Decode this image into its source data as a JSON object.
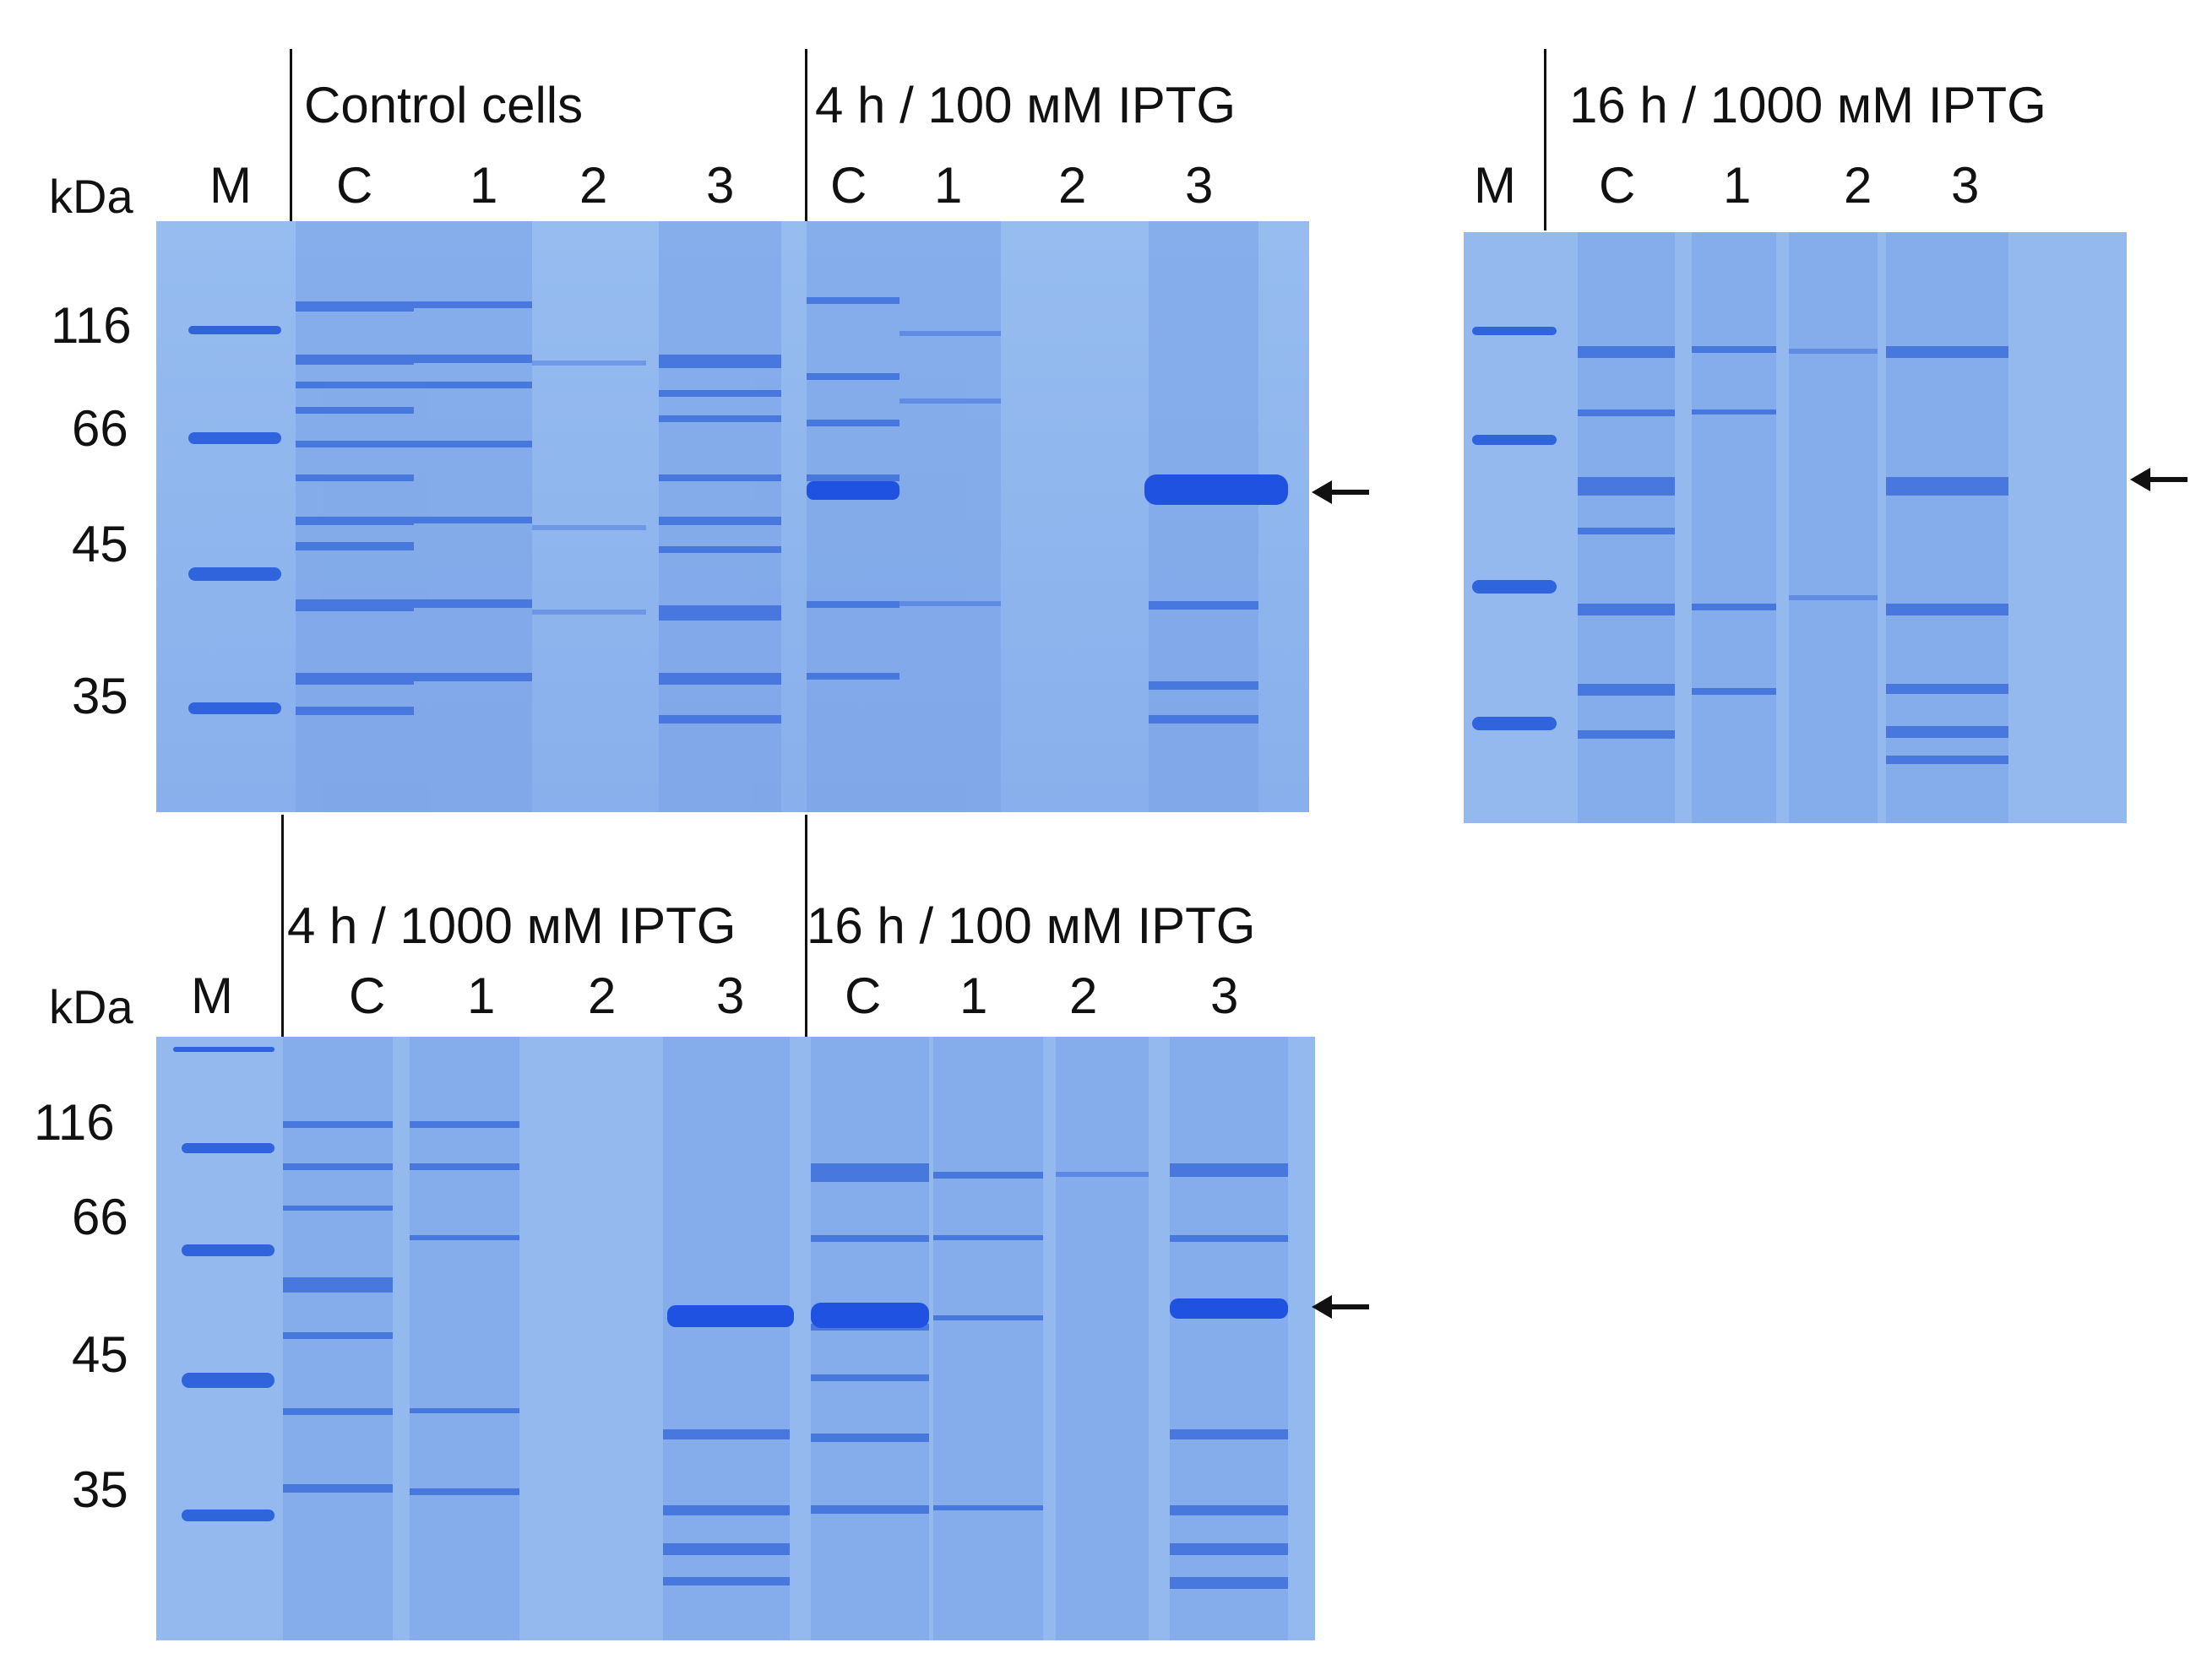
{
  "colors": {
    "gel_background": "#8fb6ee",
    "band": "#2f5fd8",
    "strong_band": "#1f4fe0",
    "text": "#111111"
  },
  "units_label": "kDa",
  "marker_lane_label": "M",
  "panels": [
    {
      "id": "panel-a",
      "marker_weights": [
        "116",
        "66",
        "45",
        "35"
      ],
      "groups": [
        {
          "condition": "Control cells",
          "lanes": [
            "C",
            "1",
            "2",
            "3"
          ]
        },
        {
          "condition": "4 h / 100 мМ IPTG",
          "lanes": [
            "C",
            "1",
            "2",
            "3"
          ]
        }
      ],
      "arrow": "target-band-indicator"
    },
    {
      "id": "panel-b",
      "marker_weights": [],
      "groups": [
        {
          "condition": "16 h / 1000 мМ IPTG",
          "lanes": [
            "C",
            "1",
            "2",
            "3"
          ]
        }
      ],
      "arrow": "target-band-indicator"
    },
    {
      "id": "panel-c",
      "marker_weights": [
        "116",
        "66",
        "45",
        "35"
      ],
      "groups": [
        {
          "condition": "4 h / 1000 мМ IPTG",
          "lanes": [
            "C",
            "1",
            "2",
            "3"
          ]
        },
        {
          "condition": "16 h / 100 мМ IPTG",
          "lanes": [
            "C",
            "1",
            "2",
            "3"
          ]
        }
      ],
      "arrow": "target-band-indicator"
    }
  ]
}
